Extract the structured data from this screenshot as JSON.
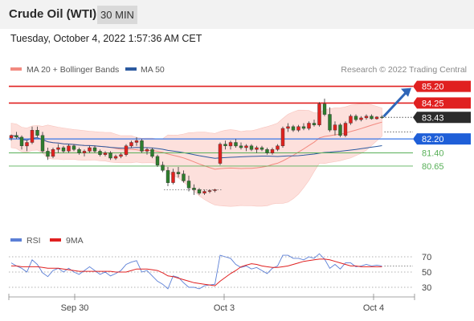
{
  "header": {
    "title": "Crude Oil (WTI)",
    "timeframe": "30 MIN",
    "datetime": "Tuesday, October 4, 2022 1:57:36 AM CET"
  },
  "copyright": "Research © 2022 Trading Central",
  "colors": {
    "resistance": "#e02020",
    "support": "#1f5fd8",
    "support_line": "#3a78e8",
    "last_price": "#2b2b2b",
    "minor_support": "#58b058",
    "bollinger_fill": "#fde0dc",
    "ma20": "#f28a80",
    "ma50": "#2c5aa0",
    "arrow": "#2f66b8",
    "rsi": "#5b7fd6",
    "rsi_ma": "#e02020",
    "bull": "#e0221f",
    "bear": "#2e7d2e"
  },
  "chart_data": [
    {
      "type": "candlestick",
      "legend": [
        "MA 20 + Bollinger Bands",
        "MA 50"
      ],
      "ylim": [
        77.3,
        85.55
      ],
      "x_ticks": [
        "Sep 30",
        "Oct 3",
        "Oct 4"
      ],
      "last_price": 83.43,
      "levels": [
        {
          "value": 85.2,
          "kind": "resistance",
          "label": "85.20"
        },
        {
          "value": 84.25,
          "kind": "resistance",
          "label": "84.25"
        },
        {
          "value": 83.43,
          "kind": "last",
          "label": "83.43"
        },
        {
          "value": 82.2,
          "kind": "support",
          "label": "82.20"
        },
        {
          "value": 81.4,
          "kind": "minor",
          "label": "81.40"
        },
        {
          "value": 80.65,
          "kind": "minor",
          "label": "80.65"
        }
      ],
      "projection": {
        "from": 83.43,
        "to": 85.2
      },
      "candles": [
        [
          82.25,
          82.45,
          82.1,
          82.4
        ],
        [
          82.4,
          82.6,
          82.2,
          82.3
        ],
        [
          82.3,
          82.4,
          81.6,
          81.8
        ],
        [
          81.8,
          82.1,
          81.5,
          82.0
        ],
        [
          82.0,
          82.9,
          81.9,
          82.7
        ],
        [
          82.7,
          82.9,
          82.3,
          82.4
        ],
        [
          82.4,
          82.6,
          81.4,
          81.5
        ],
        [
          81.5,
          81.7,
          81.0,
          81.2
        ],
        [
          81.2,
          81.7,
          81.1,
          81.6
        ],
        [
          81.6,
          81.9,
          81.4,
          81.7
        ],
        [
          81.7,
          81.8,
          81.4,
          81.5
        ],
        [
          81.5,
          81.9,
          81.4,
          81.8
        ],
        [
          81.8,
          81.9,
          81.5,
          81.6
        ],
        [
          81.6,
          81.7,
          81.3,
          81.4
        ],
        [
          81.4,
          81.6,
          81.2,
          81.5
        ],
        [
          81.5,
          81.8,
          81.4,
          81.7
        ],
        [
          81.7,
          81.8,
          81.4,
          81.5
        ],
        [
          81.5,
          81.6,
          81.2,
          81.3
        ],
        [
          81.3,
          81.5,
          81.2,
          81.4
        ],
        [
          81.4,
          81.5,
          81.0,
          81.1
        ],
        [
          81.1,
          81.3,
          81.0,
          81.2
        ],
        [
          81.2,
          81.4,
          81.1,
          81.3
        ],
        [
          81.3,
          81.9,
          81.2,
          81.8
        ],
        [
          81.8,
          82.1,
          81.7,
          82.0
        ],
        [
          82.0,
          82.3,
          81.8,
          82.1
        ],
        [
          82.1,
          82.2,
          81.4,
          81.5
        ],
        [
          81.5,
          81.7,
          81.3,
          81.6
        ],
        [
          81.6,
          81.7,
          81.1,
          81.2
        ],
        [
          81.2,
          81.3,
          80.6,
          80.7
        ],
        [
          80.7,
          80.9,
          80.3,
          80.4
        ],
        [
          80.4,
          80.6,
          79.5,
          79.7
        ],
        [
          79.7,
          80.5,
          79.6,
          80.3
        ],
        [
          80.3,
          80.6,
          80.0,
          80.2
        ],
        [
          80.2,
          80.4,
          79.7,
          79.8
        ],
        [
          79.8,
          80.1,
          79.2,
          79.4
        ],
        [
          79.4,
          79.6,
          79.0,
          79.3
        ],
        [
          79.3,
          79.4,
          79.0,
          79.1
        ],
        [
          79.1,
          79.3,
          79.0,
          79.2
        ],
        [
          79.2,
          79.3,
          79.1,
          79.25
        ],
        [
          79.25,
          79.35,
          79.15,
          79.3
        ],
        [
          80.8,
          82.0,
          80.7,
          81.9
        ],
        [
          81.9,
          82.1,
          81.6,
          81.8
        ],
        [
          81.8,
          82.1,
          81.6,
          82.0
        ],
        [
          82.0,
          82.2,
          81.7,
          81.8
        ],
        [
          81.8,
          82.0,
          81.6,
          81.7
        ],
        [
          81.7,
          81.9,
          81.5,
          81.8
        ],
        [
          81.8,
          81.9,
          81.5,
          81.6
        ],
        [
          81.6,
          81.8,
          81.4,
          81.7
        ],
        [
          81.7,
          81.8,
          81.5,
          81.6
        ],
        [
          81.6,
          81.7,
          81.3,
          81.4
        ],
        [
          81.4,
          81.7,
          81.3,
          81.6
        ],
        [
          81.6,
          81.9,
          81.5,
          81.8
        ],
        [
          81.8,
          82.9,
          81.7,
          82.8
        ],
        [
          82.8,
          83.1,
          82.6,
          82.9
        ],
        [
          82.9,
          83.0,
          82.6,
          82.7
        ],
        [
          82.7,
          83.0,
          82.6,
          82.9
        ],
        [
          82.9,
          83.1,
          82.7,
          82.8
        ],
        [
          82.8,
          83.2,
          82.7,
          83.1
        ],
        [
          83.1,
          83.3,
          82.9,
          83.0
        ],
        [
          83.0,
          84.3,
          82.9,
          84.2
        ],
        [
          84.2,
          84.5,
          83.5,
          83.6
        ],
        [
          83.6,
          84.0,
          82.6,
          82.7
        ],
        [
          82.7,
          83.2,
          82.4,
          83.0
        ],
        [
          83.0,
          83.1,
          82.3,
          82.4
        ],
        [
          82.4,
          83.2,
          82.3,
          83.1
        ],
        [
          83.1,
          83.6,
          83.0,
          83.5
        ],
        [
          83.5,
          83.6,
          83.2,
          83.3
        ],
        [
          83.3,
          83.5,
          83.2,
          83.4
        ],
        [
          83.4,
          83.6,
          83.3,
          83.5
        ],
        [
          83.5,
          83.6,
          83.3,
          83.35
        ],
        [
          83.35,
          83.5,
          83.3,
          83.45
        ],
        [
          83.45,
          83.55,
          83.35,
          83.43
        ]
      ]
    },
    {
      "type": "line",
      "legend": [
        "RSI",
        "9MA"
      ],
      "ylim": [
        20,
        80
      ],
      "y_ticks": [
        70,
        50,
        30
      ],
      "rsi": [
        62,
        58,
        55,
        50,
        66,
        60,
        49,
        44,
        52,
        55,
        50,
        55,
        50,
        47,
        52,
        57,
        52,
        47,
        50,
        45,
        48,
        52,
        60,
        63,
        65,
        50,
        52,
        45,
        38,
        34,
        28,
        45,
        43,
        36,
        30,
        30,
        28,
        32,
        33,
        34,
        72,
        70,
        68,
        60,
        56,
        58,
        54,
        56,
        52,
        48,
        55,
        58,
        72,
        72,
        68,
        68,
        66,
        70,
        68,
        74,
        67,
        55,
        60,
        54,
        62,
        62,
        57,
        58,
        60,
        58,
        59,
        58
      ],
      "ma": [
        58,
        58,
        57,
        57,
        57,
        57,
        56,
        55,
        55,
        55,
        54,
        53,
        52,
        51,
        51,
        51,
        51,
        51,
        51,
        51,
        50,
        50,
        50,
        52,
        54,
        54,
        54,
        53,
        52,
        49,
        45,
        44,
        42,
        40,
        38,
        36,
        35,
        34,
        33,
        32,
        38,
        43,
        48,
        52,
        57,
        59,
        61,
        60,
        58,
        57,
        56,
        56,
        57,
        58,
        60,
        62,
        64,
        65,
        66,
        67,
        67,
        66,
        64,
        62,
        60,
        58,
        58,
        57,
        57,
        57,
        57,
        57
      ]
    }
  ]
}
